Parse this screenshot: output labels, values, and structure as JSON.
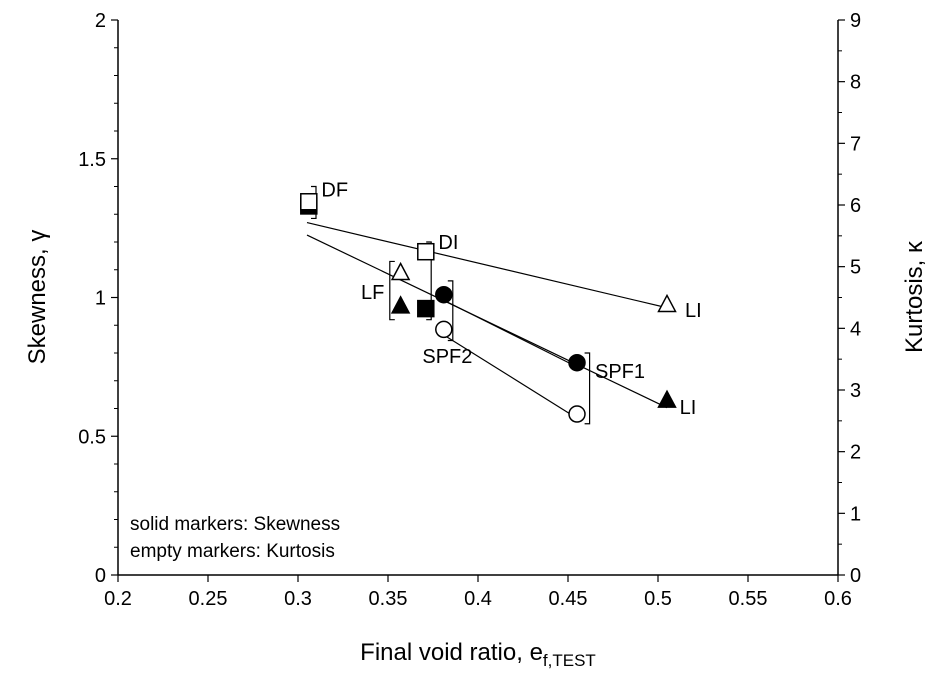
{
  "chart_data": {
    "type": "scatter",
    "xlabel_main": "Final void ratio, e",
    "xlabel_sub": "f,TEST",
    "ylabel_left": "Skewness, γ",
    "ylabel_right": "Kurtosis, κ",
    "xlim": [
      0.2,
      0.6
    ],
    "ylim_left": [
      0,
      2
    ],
    "ylim_right": [
      0,
      9
    ],
    "xticks": [
      "0.2",
      "0.25",
      "0.3",
      "0.35",
      "0.4",
      "0.45",
      "0.5",
      "0.55",
      "0.6"
    ],
    "yticks_left": [
      "0",
      "0.5",
      "1",
      "1.5",
      "2"
    ],
    "yticks_right": [
      "0",
      "1",
      "2",
      "3",
      "4",
      "5",
      "6",
      "7",
      "8",
      "9"
    ],
    "grid": false,
    "series": [
      {
        "marker": "square",
        "fill": "solid",
        "points": [
          {
            "x": 0.306,
            "y": 1.33
          },
          {
            "x": 0.371,
            "y": 0.96
          }
        ]
      },
      {
        "marker": "square",
        "fill": "empty",
        "points": [
          {
            "x": 0.306,
            "y": 1.345
          },
          {
            "x": 0.371,
            "y": 1.165
          }
        ]
      },
      {
        "marker": "triangle",
        "fill": "solid",
        "points": [
          {
            "x": 0.357,
            "y": 0.97
          },
          {
            "x": 0.505,
            "y": 0.63
          }
        ]
      },
      {
        "marker": "triangle",
        "fill": "empty",
        "points": [
          {
            "x": 0.357,
            "y": 1.09
          },
          {
            "x": 0.505,
            "y": 0.975
          }
        ]
      },
      {
        "marker": "circle",
        "fill": "solid",
        "points": [
          {
            "x": 0.381,
            "y": 1.01
          },
          {
            "x": 0.455,
            "y": 0.765
          }
        ]
      },
      {
        "marker": "circle",
        "fill": "empty",
        "points": [
          {
            "x": 0.381,
            "y": 0.885
          },
          {
            "x": 0.455,
            "y": 0.58
          }
        ]
      }
    ],
    "trend_lines": [
      {
        "x1": 0.305,
        "y1": 1.27,
        "x2": 0.505,
        "y2": 0.963
      },
      {
        "x1": 0.305,
        "y1": 1.225,
        "x2": 0.505,
        "y2": 0.603
      },
      {
        "x1": 0.381,
        "y1": 0.99,
        "x2": 0.455,
        "y2": 0.75
      },
      {
        "x1": 0.381,
        "y1": 0.865,
        "x2": 0.455,
        "y2": 0.565
      }
    ],
    "annotations": [
      {
        "text": "DF",
        "x": 0.313,
        "y": 1.39,
        "anchor": "start"
      },
      {
        "text": "DI",
        "x": 0.378,
        "y": 1.2,
        "anchor": "start"
      },
      {
        "text": "LF",
        "x": 0.348,
        "y": 1.02,
        "anchor": "end"
      },
      {
        "text": "LI",
        "x": 0.515,
        "y": 0.955,
        "anchor": "start"
      },
      {
        "text": "SPF2",
        "x": 0.383,
        "y": 0.79,
        "anchor": "middle"
      },
      {
        "text": "SPF1",
        "x": 0.465,
        "y": 0.735,
        "anchor": "start"
      },
      {
        "text": "LI",
        "x": 0.512,
        "y": 0.605,
        "anchor": "start"
      }
    ],
    "brackets": [
      {
        "x": 0.31,
        "y_top": 1.4,
        "y_bottom": 1.285,
        "side": "right"
      },
      {
        "x": 0.374,
        "y_top": 1.2,
        "y_bottom": 0.92,
        "side": "right"
      },
      {
        "x": 0.351,
        "y_top": 1.13,
        "y_bottom": 0.92,
        "side": "left"
      },
      {
        "x": 0.386,
        "y_top": 1.06,
        "y_bottom": 0.845,
        "side": "right"
      },
      {
        "x": 0.462,
        "y_top": 0.8,
        "y_bottom": 0.545,
        "side": "right"
      }
    ],
    "note_lines": [
      "solid markers: Skewness",
      "empty markers: Kurtosis"
    ]
  }
}
